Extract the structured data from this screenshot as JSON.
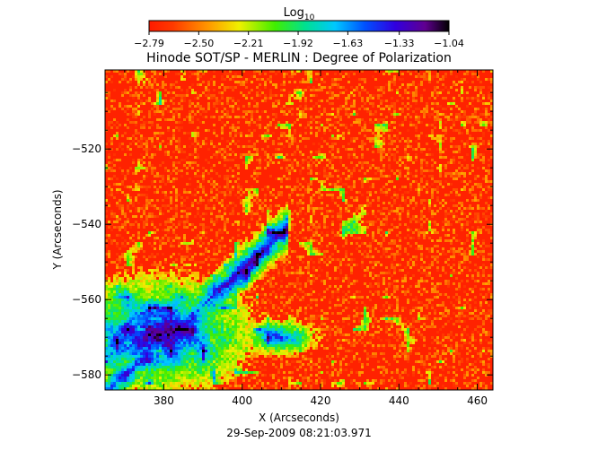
{
  "chart_data": {
    "type": "heatmap",
    "title": "Hinode SOT/SP - MERLIN : Degree of Polarization",
    "xlabel": "X (Arcseconds)",
    "ylabel": "Y (Arcseconds)",
    "footer": "29-Sep-2009 08:21:03.971",
    "xlim": [
      365,
      464
    ],
    "ylim": [
      -584,
      -499
    ],
    "x_ticks": [
      "380",
      "400",
      "420",
      "440",
      "460"
    ],
    "x_tick_values": [
      380,
      400,
      420,
      440,
      460
    ],
    "y_ticks": [
      "−520",
      "−540",
      "−560",
      "−580"
    ],
    "y_tick_values": [
      -520,
      -540,
      -560,
      -580
    ],
    "colorbar": {
      "label_base": "Log",
      "label_sub": "10",
      "ticks": [
        "−2.79",
        "−2.50",
        "−2.21",
        "−1.92",
        "−1.63",
        "−1.33",
        "−1.04"
      ],
      "tick_values": [
        -2.79,
        -2.5,
        -2.21,
        -1.92,
        -1.63,
        -1.33,
        -1.04
      ],
      "range": [
        -2.79,
        -1.04
      ],
      "colormap": "rainbow (red → yellow → green → cyan → blue → violet → black)"
    }
  }
}
